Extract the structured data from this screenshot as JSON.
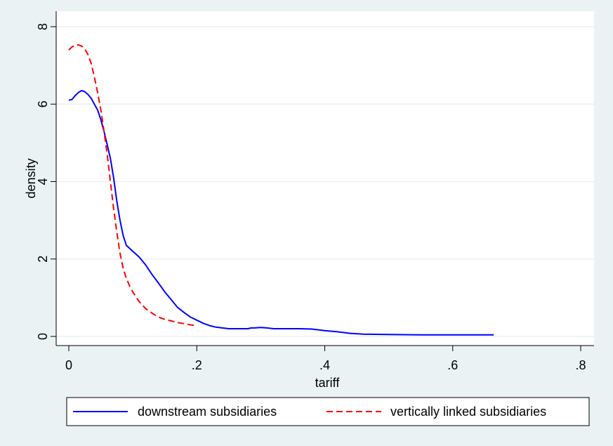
{
  "chart_data": {
    "type": "line",
    "title": "",
    "xlabel": "tariff",
    "ylabel": "density",
    "xlim": [
      0,
      0.8
    ],
    "ylim": [
      0,
      8
    ],
    "x_ticks": [
      0,
      0.2,
      0.4,
      0.6,
      0.8
    ],
    "x_tick_labels": [
      "0",
      ".2",
      ".4",
      ".6",
      ".8"
    ],
    "y_ticks": [
      0,
      2,
      4,
      6,
      8
    ],
    "y_tick_labels": [
      "0",
      "2",
      "4",
      "6",
      "8"
    ],
    "grid": "horizontal",
    "legend_position": "bottom",
    "series": [
      {
        "name": "downstream subsidiaries",
        "color": "#0000ff",
        "dash": "solid",
        "x": [
          0,
          0.005,
          0.01,
          0.015,
          0.02,
          0.025,
          0.03,
          0.035,
          0.04,
          0.045,
          0.05,
          0.055,
          0.06,
          0.065,
          0.07,
          0.075,
          0.08,
          0.085,
          0.09,
          0.1,
          0.11,
          0.12,
          0.13,
          0.14,
          0.15,
          0.16,
          0.17,
          0.18,
          0.19,
          0.2,
          0.21,
          0.22,
          0.23,
          0.24,
          0.25,
          0.26,
          0.27,
          0.28,
          0.285,
          0.29,
          0.3,
          0.31,
          0.32,
          0.34,
          0.36,
          0.38,
          0.4,
          0.42,
          0.44,
          0.46,
          0.5,
          0.55,
          0.6,
          0.664
        ],
        "y": [
          6.1,
          6.12,
          6.22,
          6.3,
          6.35,
          6.32,
          6.25,
          6.15,
          6.0,
          5.85,
          5.6,
          5.3,
          4.95,
          4.6,
          4.1,
          3.5,
          3.0,
          2.6,
          2.35,
          2.2,
          2.05,
          1.85,
          1.6,
          1.38,
          1.15,
          0.95,
          0.75,
          0.62,
          0.5,
          0.42,
          0.34,
          0.28,
          0.24,
          0.22,
          0.2,
          0.2,
          0.2,
          0.2,
          0.22,
          0.22,
          0.23,
          0.22,
          0.2,
          0.2,
          0.2,
          0.19,
          0.15,
          0.12,
          0.08,
          0.06,
          0.05,
          0.04,
          0.04,
          0.04
        ]
      },
      {
        "name": "vertically linked subsidiaries",
        "color": "#ff0000",
        "dash": "dashed",
        "x": [
          0,
          0.005,
          0.01,
          0.015,
          0.02,
          0.025,
          0.03,
          0.035,
          0.04,
          0.045,
          0.05,
          0.055,
          0.06,
          0.065,
          0.07,
          0.075,
          0.08,
          0.085,
          0.09,
          0.095,
          0.1,
          0.11,
          0.12,
          0.13,
          0.14,
          0.15,
          0.16,
          0.17,
          0.18,
          0.19,
          0.2
        ],
        "y": [
          7.4,
          7.48,
          7.52,
          7.53,
          7.5,
          7.42,
          7.28,
          7.05,
          6.7,
          6.3,
          5.85,
          5.3,
          4.7,
          4.0,
          3.3,
          2.7,
          2.15,
          1.75,
          1.5,
          1.3,
          1.15,
          0.9,
          0.72,
          0.6,
          0.5,
          0.44,
          0.4,
          0.36,
          0.33,
          0.3,
          0.28
        ]
      }
    ]
  }
}
